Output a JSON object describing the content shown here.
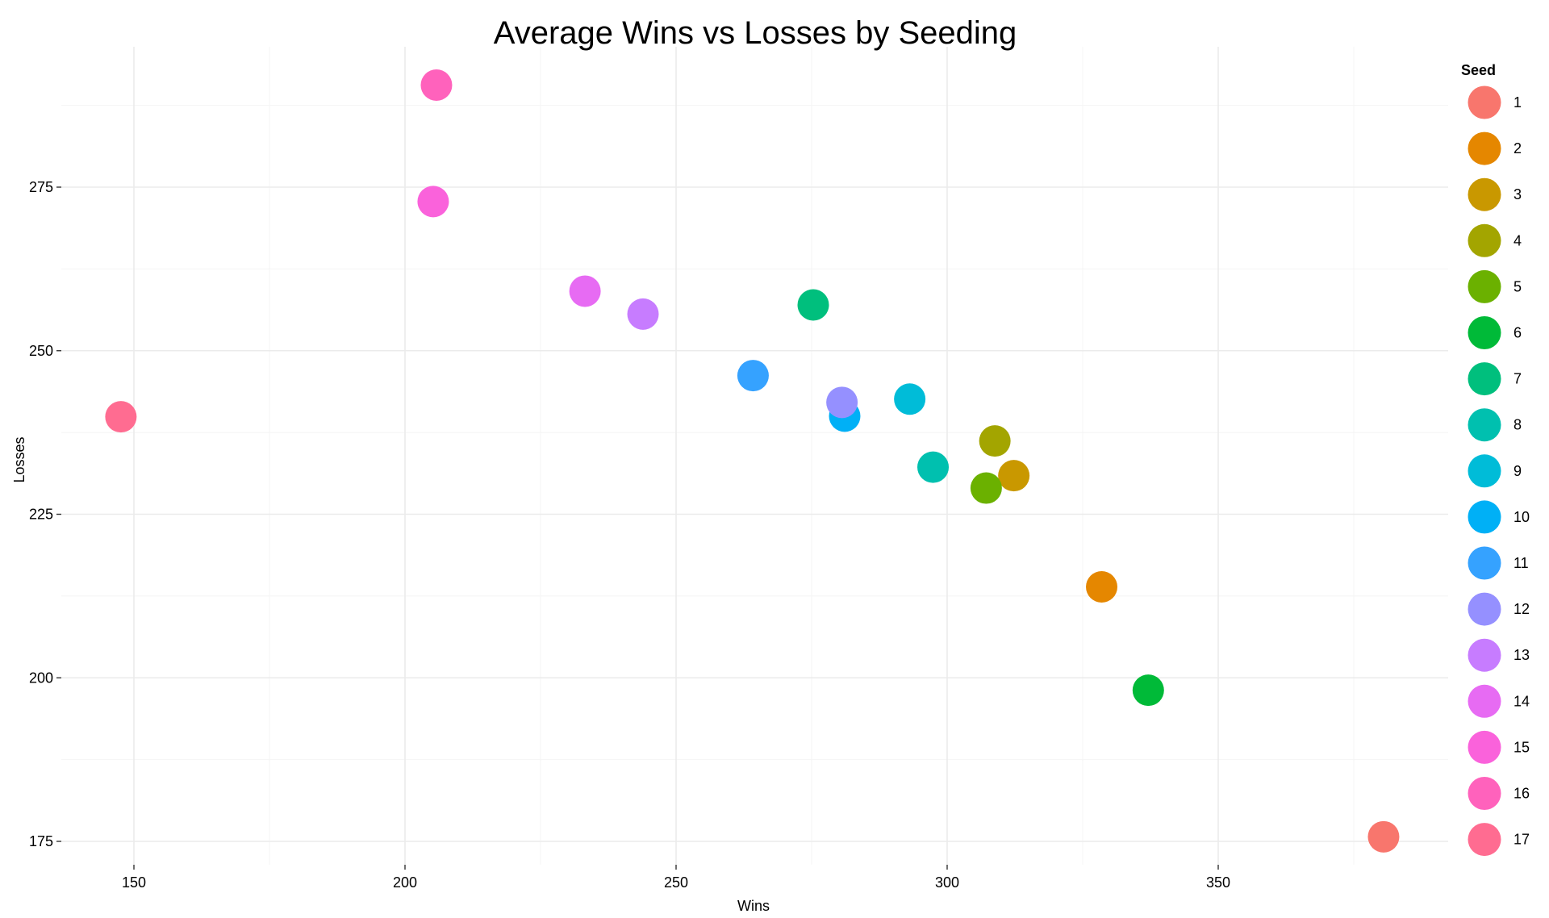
{
  "chart_data": {
    "type": "scatter",
    "title": "Average Wins vs Losses by Seeding",
    "xlabel": "Wins",
    "ylabel": "Losses",
    "xlim": [
      136,
      390
    ],
    "ylim": [
      170,
      296
    ],
    "x_ticks": [
      150,
      200,
      250,
      300,
      350
    ],
    "y_ticks": [
      175,
      200,
      225,
      250,
      275
    ],
    "grid": true,
    "legend": {
      "title": "Seed",
      "placement": "right"
    },
    "points": [
      {
        "seed": "1",
        "wins": 380.5,
        "losses": 175.7,
        "color": "#F8766D"
      },
      {
        "seed": "2",
        "wins": 328.5,
        "losses": 213.9,
        "color": "#E58700"
      },
      {
        "seed": "3",
        "wins": 312.3,
        "losses": 230.9,
        "color": "#C99800"
      },
      {
        "seed": "4",
        "wins": 308.8,
        "losses": 236.2,
        "color": "#A3A500"
      },
      {
        "seed": "5",
        "wins": 307.2,
        "losses": 229.0,
        "color": "#6BB100"
      },
      {
        "seed": "6",
        "wins": 337.1,
        "losses": 198.1,
        "color": "#00BA38"
      },
      {
        "seed": "7",
        "wins": 275.3,
        "losses": 257.0,
        "color": "#00BF7D"
      },
      {
        "seed": "8",
        "wins": 297.4,
        "losses": 232.2,
        "color": "#00C0AF"
      },
      {
        "seed": "9",
        "wins": 293.1,
        "losses": 242.6,
        "color": "#00BCD8"
      },
      {
        "seed": "10",
        "wins": 281.1,
        "losses": 240.0,
        "color": "#00B0F6"
      },
      {
        "seed": "11",
        "wins": 264.2,
        "losses": 246.2,
        "color": "#35A2FF"
      },
      {
        "seed": "12",
        "wins": 280.6,
        "losses": 242.1,
        "color": "#9590FF"
      },
      {
        "seed": "13",
        "wins": 243.9,
        "losses": 255.6,
        "color": "#C77CFF"
      },
      {
        "seed": "14",
        "wins": 233.2,
        "losses": 259.1,
        "color": "#E76BF3"
      },
      {
        "seed": "15",
        "wins": 205.2,
        "losses": 272.8,
        "color": "#FA62DB"
      },
      {
        "seed": "16",
        "wins": 205.8,
        "losses": 290.6,
        "color": "#FF62BC"
      },
      {
        "seed": "17",
        "wins": 147.6,
        "losses": 239.9,
        "color": "#FF6C91"
      }
    ],
    "legend_entries": [
      {
        "label": "1",
        "color": "#F8766D"
      },
      {
        "label": "2",
        "color": "#E58700"
      },
      {
        "label": "3",
        "color": "#C99800"
      },
      {
        "label": "4",
        "color": "#A3A500"
      },
      {
        "label": "5",
        "color": "#6BB100"
      },
      {
        "label": "6",
        "color": "#00BA38"
      },
      {
        "label": "7",
        "color": "#00BF7D"
      },
      {
        "label": "8",
        "color": "#00C0AF"
      },
      {
        "label": "9",
        "color": "#00BCD8"
      },
      {
        "label": "10",
        "color": "#00B0F6"
      },
      {
        "label": "11",
        "color": "#35A2FF"
      },
      {
        "label": "12",
        "color": "#9590FF"
      },
      {
        "label": "13",
        "color": "#C77CFF"
      },
      {
        "label": "14",
        "color": "#E76BF3"
      },
      {
        "label": "15",
        "color": "#FA62DB"
      },
      {
        "label": "16",
        "color": "#FF62BC"
      },
      {
        "label": "17",
        "color": "#FF6C91"
      }
    ]
  }
}
